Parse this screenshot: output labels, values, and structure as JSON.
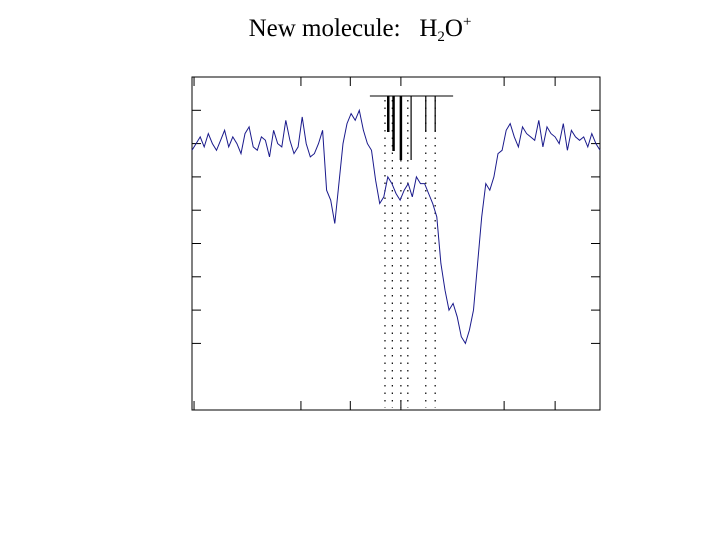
{
  "slide": {
    "title_prefix": "New molecule:",
    "formula": {
      "element_1": "H",
      "count_1": "2",
      "element_2": "O",
      "charge": "+"
    }
  },
  "colors": {
    "spectrum": "#1a1a8c",
    "axes": "#000000",
    "markers": "#000000"
  },
  "chart_data": {
    "type": "line",
    "title": "",
    "xlabel": "",
    "ylabel": "",
    "xlim": [
      0,
      100
    ],
    "ylim": [
      0,
      100
    ],
    "grid": false,
    "tick_labels_shown": false,
    "series": [
      {
        "x": [
          0,
          1,
          2,
          3,
          4,
          5,
          6,
          7,
          8,
          9,
          10,
          11,
          12,
          13,
          14,
          15,
          16,
          17,
          18,
          19,
          20,
          21,
          22,
          23,
          24,
          25,
          26,
          27,
          28,
          29,
          30,
          31,
          32,
          33,
          34,
          35,
          36,
          37,
          38,
          39,
          40,
          41,
          42,
          43,
          44,
          45,
          46,
          47,
          48,
          49,
          50,
          51,
          52,
          53,
          54,
          55,
          56,
          57,
          58,
          59,
          60,
          61,
          62,
          63,
          64,
          65,
          66,
          67,
          68,
          69,
          70,
          71,
          72,
          73,
          74,
          75,
          76,
          77,
          78,
          79,
          80,
          81,
          82,
          83,
          84,
          85,
          86,
          87,
          88,
          89,
          90,
          91,
          92,
          93,
          94,
          95,
          96,
          97,
          98,
          99,
          100
        ],
        "values": [
          78,
          80,
          82,
          79,
          83,
          80,
          78,
          81,
          84,
          79,
          82,
          80,
          77,
          83,
          85,
          79,
          78,
          82,
          81,
          76,
          84,
          80,
          79,
          87,
          81,
          77,
          79,
          88,
          80,
          76,
          77,
          80,
          84,
          66,
          63,
          56,
          68,
          80,
          86,
          89,
          87,
          90,
          84,
          80,
          78,
          69,
          62,
          64,
          70,
          68,
          65,
          63,
          66,
          68,
          64,
          70,
          68,
          68,
          65,
          62,
          58,
          44,
          36,
          30,
          32,
          28,
          22,
          20,
          24,
          30,
          44,
          58,
          68,
          66,
          70,
          77,
          78,
          84,
          86,
          82,
          79,
          85,
          83,
          82,
          81,
          87,
          79,
          85,
          83,
          82,
          80,
          86,
          78,
          84,
          82,
          81,
          82,
          79,
          83,
          80,
          78
        ]
      }
    ],
    "annotations": {
      "marker_lines": [
        {
          "x": 48.1,
          "length": "short",
          "bold": true
        },
        {
          "x": 49.4,
          "length": "medium",
          "bold": true
        },
        {
          "x": 51.2,
          "length": "long",
          "bold": true
        },
        {
          "x": 53.7,
          "length": "long",
          "bold": false
        },
        {
          "x": 57.3,
          "length": "short",
          "bold": false
        },
        {
          "x": 59.6,
          "length": "short",
          "bold": false
        }
      ],
      "dotted_lines_x": [
        47.3,
        49.1,
        51.2,
        52.9,
        57.3,
        59.6
      ],
      "marker_bar_range": [
        43.6,
        64.0
      ]
    }
  }
}
